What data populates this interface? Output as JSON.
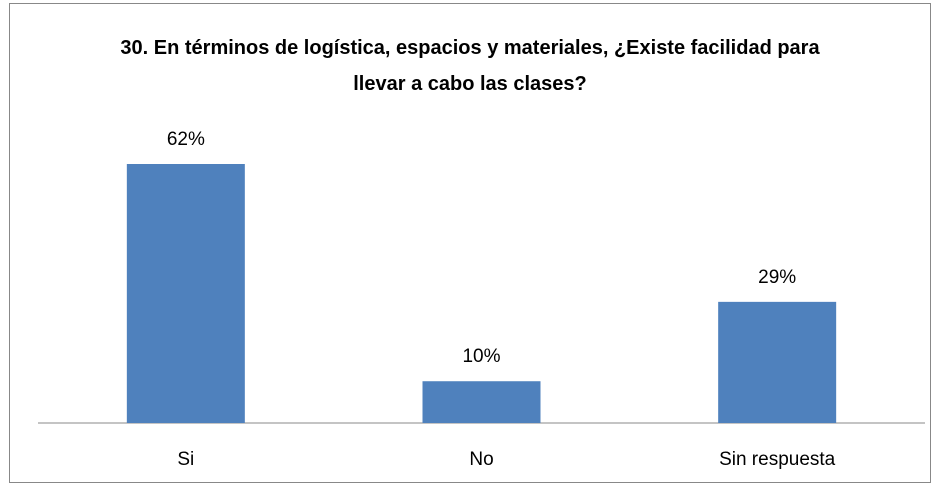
{
  "chart_data": {
    "type": "bar",
    "title": "30. En términos de logística, espacios y materiales, ¿Existe facilidad para llevar a cabo las clases?",
    "categories": [
      "Si",
      "No",
      "Sin respuesta"
    ],
    "values": [
      62,
      10,
      29
    ],
    "value_labels": [
      "62%",
      "10%",
      "29%"
    ],
    "color": "#4f81bd"
  }
}
